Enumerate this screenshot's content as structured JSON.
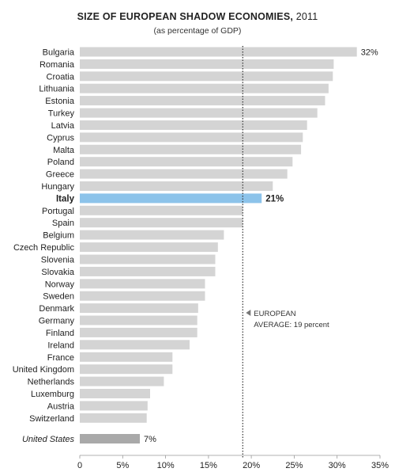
{
  "chart_data": {
    "type": "bar",
    "orientation": "horizontal",
    "title": "SIZE OF EUROPEAN SHADOW ECONOMIES,",
    "title_year": "2011",
    "subtitle": "(as percentage of GDP)",
    "categories": [
      "Bulgaria",
      "Romania",
      "Croatia",
      "Lithuania",
      "Estonia",
      "Turkey",
      "Latvia",
      "Cyprus",
      "Malta",
      "Poland",
      "Greece",
      "Hungary",
      "Italy",
      "Portugal",
      "Spain",
      "Belgium",
      "Czech Republic",
      "Slovenia",
      "Slovakia",
      "Norway",
      "Sweden",
      "Denmark",
      "Germany",
      "Finland",
      "Ireland",
      "France",
      "United Kingdom",
      "Netherlands",
      "Luxemburg",
      "Austria",
      "Switzerland"
    ],
    "values": [
      32.3,
      29.6,
      29.5,
      29.0,
      28.6,
      27.7,
      26.5,
      26.0,
      25.8,
      24.8,
      24.2,
      22.5,
      21.2,
      19.0,
      19.0,
      16.8,
      16.1,
      15.8,
      15.8,
      14.6,
      14.6,
      13.8,
      13.7,
      13.7,
      12.8,
      10.8,
      10.8,
      9.8,
      8.2,
      7.9,
      7.8
    ],
    "highlight": {
      "category": "Italy",
      "label": "21%",
      "color": "#8cc3ea"
    },
    "top_label": {
      "category": "Bulgaria",
      "label": "32%"
    },
    "comparison": {
      "category": "United States",
      "value": 7.0,
      "label": "7%",
      "color": "#a9a9a9"
    },
    "bar_color": "#d4d4d4",
    "average": {
      "value": 19.0,
      "label_line1": "EUROPEAN",
      "label_line2": "AVERAGE: 19 percent"
    },
    "xlim": [
      0,
      35
    ],
    "x_ticks": [
      {
        "value": 0,
        "label": "0"
      },
      {
        "value": 5,
        "label": "5%"
      },
      {
        "value": 10,
        "label": "10%"
      },
      {
        "value": 15,
        "label": "15%"
      },
      {
        "value": 20,
        "label": "20%"
      },
      {
        "value": 25,
        "label": "25%"
      },
      {
        "value": 30,
        "label": "30%"
      },
      {
        "value": 35,
        "label": "35%"
      }
    ]
  }
}
